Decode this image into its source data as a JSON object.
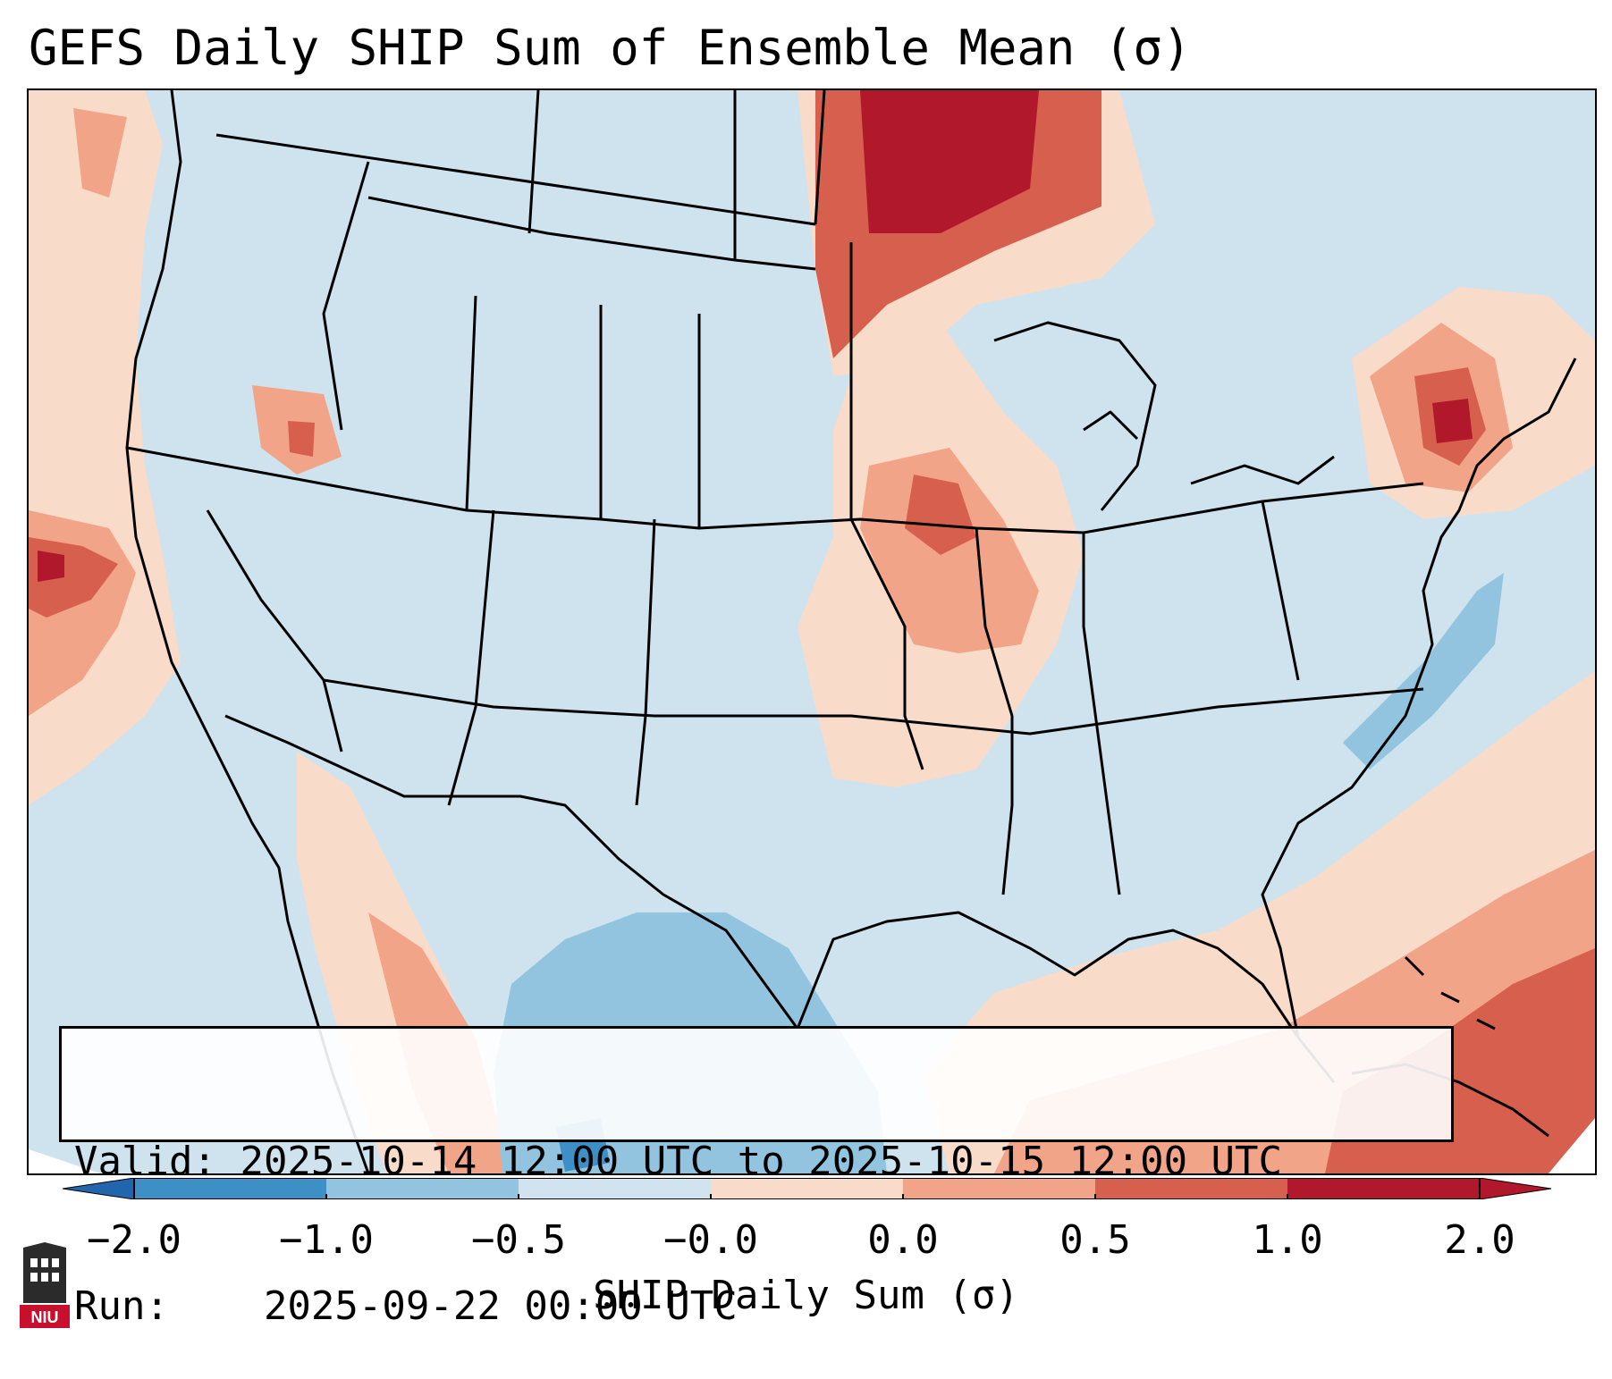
{
  "title": "GEFS Daily SHIP Sum of Ensemble Mean (σ)",
  "info": {
    "valid_label": "Valid:",
    "valid_value": "2025-10-14 12:00 UTC to 2025-10-15 12:00 UTC",
    "run_label": "Run:",
    "run_value": "2025-09-22 00:00 UTC"
  },
  "colorbar": {
    "label": "SHIP Daily Sum (σ)",
    "ticks": [
      "−2.0",
      "−1.0",
      "−0.5",
      "−0.0",
      "0.0",
      "0.5",
      "1.0",
      "2.0"
    ],
    "colors": [
      "#3f8fc7",
      "#92c4df",
      "#d0e3ef",
      "#f9dbc9",
      "#f2a488",
      "#d6604d",
      "#b2182b"
    ],
    "extend_low_color": "#2166ac",
    "extend_high_color": "#b2182b"
  },
  "logo": {
    "text": "NIU",
    "color": "#c8102e"
  },
  "map": {
    "background": "#cfe3ef",
    "labels_present": false
  }
}
